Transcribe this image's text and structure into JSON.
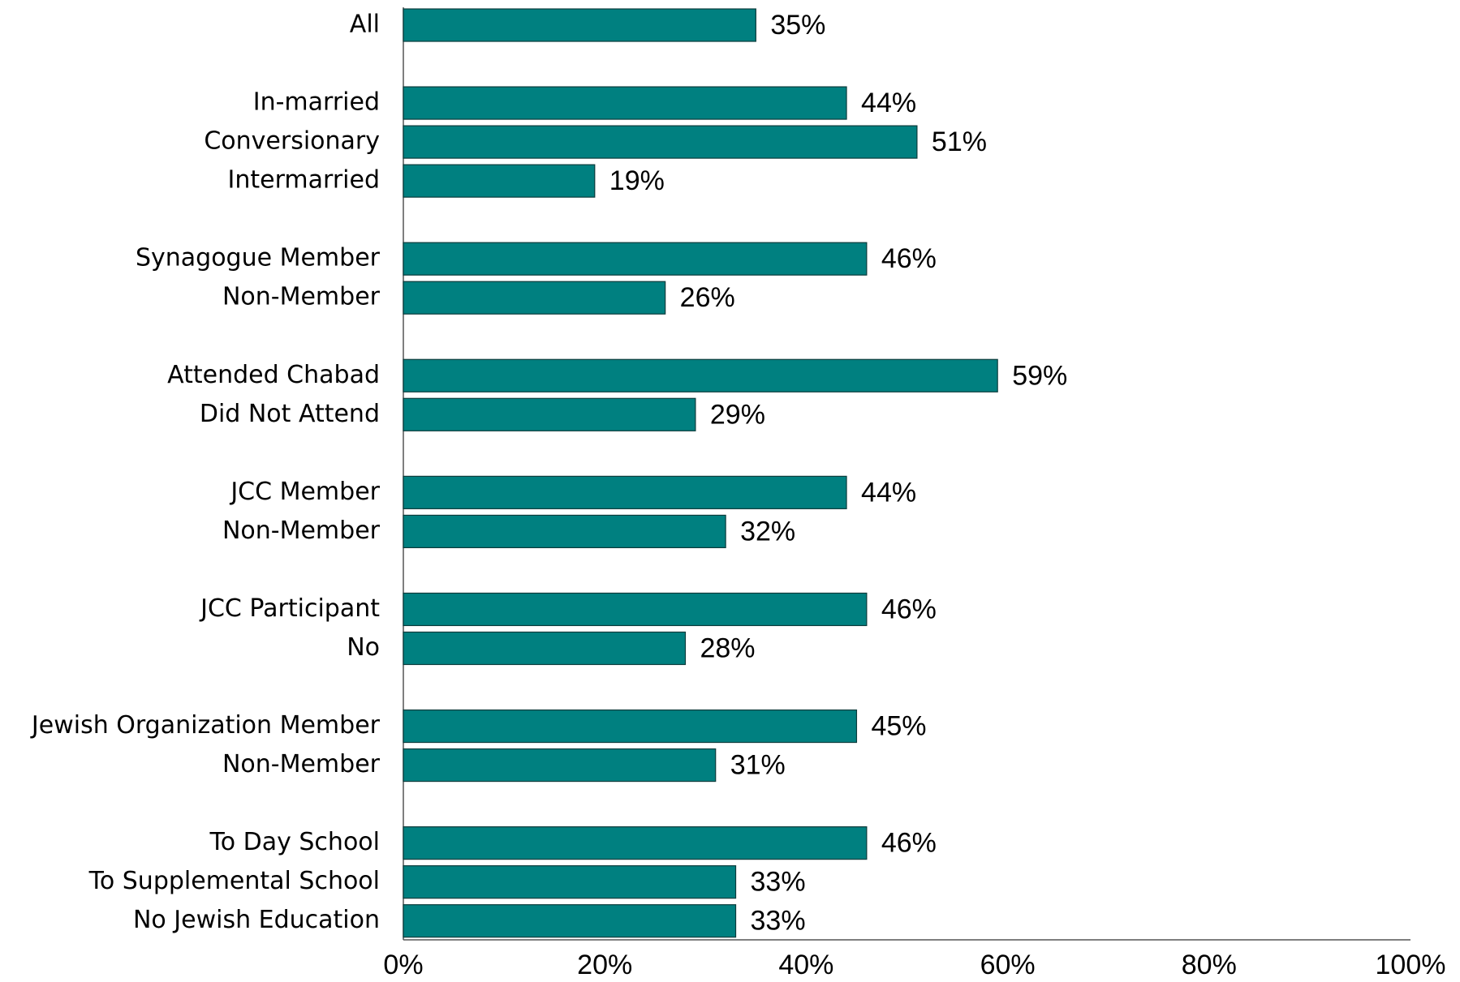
{
  "chart_data": {
    "type": "bar",
    "orientation": "horizontal",
    "categories": [
      "All",
      null,
      "In-married",
      "Conversionary",
      "Intermarried",
      null,
      "Synagogue Member",
      "Non-Member",
      null,
      "Attended Chabad",
      "Did Not Attend",
      null,
      "JCC Member",
      "Non-Member",
      null,
      "JCC Participant",
      "No",
      null,
      "Jewish Organization Member",
      "Non-Member",
      null,
      "To Day School",
      "To Supplemental School",
      "No Jewish Education"
    ],
    "values": [
      35,
      null,
      44,
      51,
      19,
      null,
      46,
      26,
      null,
      59,
      29,
      null,
      44,
      32,
      null,
      46,
      28,
      null,
      45,
      31,
      null,
      46,
      33,
      33
    ],
    "value_labels": [
      "35%",
      null,
      "44%",
      "51%",
      "19%",
      null,
      "46%",
      "26%",
      null,
      "59%",
      "29%",
      null,
      "44%",
      "32%",
      null,
      "46%",
      "28%",
      null,
      "45%",
      "31%",
      null,
      "46%",
      "33%",
      "33%"
    ],
    "color": "#008080",
    "xlim": [
      0,
      100
    ],
    "xticks": [
      {
        "value": 0,
        "label": "0%"
      },
      {
        "value": 20,
        "label": "20%"
      },
      {
        "value": 40,
        "label": "40%"
      },
      {
        "value": 60,
        "label": "60%"
      },
      {
        "value": 80,
        "label": "80%"
      },
      {
        "value": 100,
        "label": "100%"
      }
    ],
    "grid": false
  }
}
